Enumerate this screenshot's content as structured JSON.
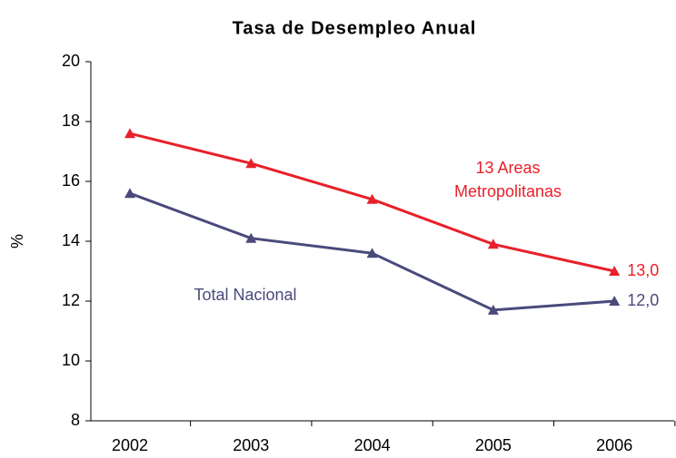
{
  "chart_data": {
    "type": "line",
    "title": "Tasa de Desempleo Anual",
    "ylabel": "%",
    "categories": [
      "2002",
      "2003",
      "2004",
      "2005",
      "2006"
    ],
    "series": [
      {
        "name": "13 Areas Metropolitanas",
        "color": "#e8202a",
        "values": [
          17.6,
          16.6,
          15.4,
          13.9,
          13.0
        ],
        "value_labels": [
          null,
          null,
          null,
          null,
          "13,0"
        ]
      },
      {
        "name": "Total Nacional",
        "color": "#4a4a7c",
        "values": [
          15.6,
          14.1,
          13.6,
          11.7,
          12.0
        ],
        "value_labels": [
          null,
          null,
          null,
          null,
          "12,0"
        ]
      }
    ],
    "ylim": [
      8,
      20
    ],
    "yticks": [
      8,
      10,
      12,
      14,
      16,
      18,
      20
    ],
    "grid": false
  }
}
